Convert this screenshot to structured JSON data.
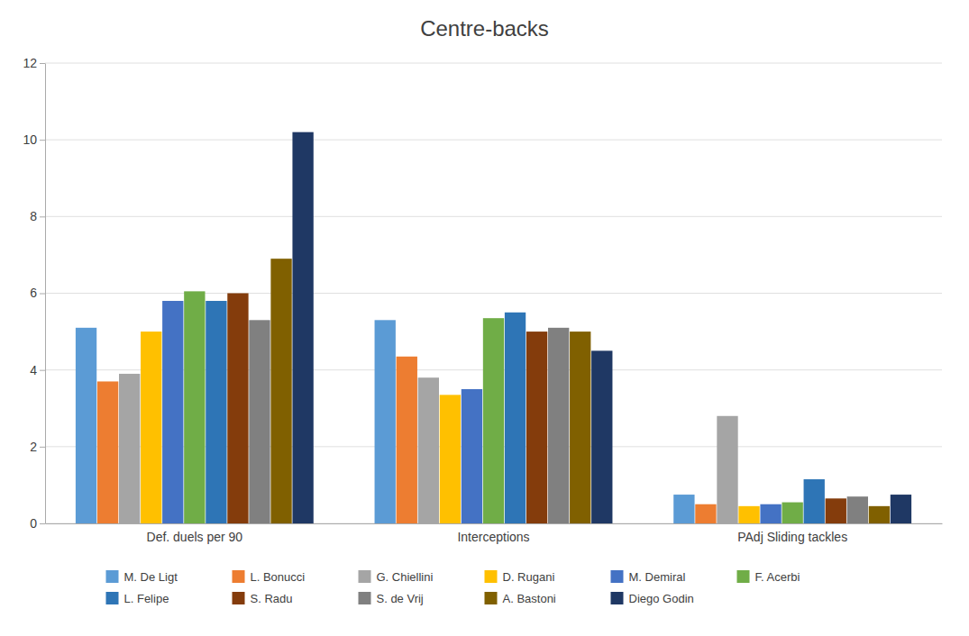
{
  "chart_data": {
    "type": "bar",
    "title": "Centre-backs",
    "categories": [
      "Def. duels per 90",
      "Interceptions",
      "PAdj Sliding tackles"
    ],
    "series": [
      {
        "name": "M. De Ligt",
        "color": "#5B9BD5",
        "values": [
          5.1,
          5.3,
          0.75
        ]
      },
      {
        "name": "L. Bonucci",
        "color": "#ED7D31",
        "values": [
          3.7,
          4.35,
          0.5
        ]
      },
      {
        "name": "G. Chiellini",
        "color": "#A5A5A5",
        "values": [
          3.9,
          3.8,
          2.8
        ]
      },
      {
        "name": "D. Rugani",
        "color": "#FFC000",
        "values": [
          5.0,
          3.35,
          0.45
        ]
      },
      {
        "name": "M. Demiral",
        "color": "#4472C4",
        "values": [
          5.8,
          3.5,
          0.5
        ]
      },
      {
        "name": "F. Acerbi",
        "color": "#70AD47",
        "values": [
          6.05,
          5.35,
          0.55
        ]
      },
      {
        "name": "L. Felipe",
        "color": "#2E75B6",
        "values": [
          5.8,
          5.5,
          1.15
        ]
      },
      {
        "name": "S. Radu",
        "color": "#843C0C",
        "values": [
          6.0,
          5.0,
          0.65
        ]
      },
      {
        "name": "S. de Vrij",
        "color": "#808080",
        "values": [
          5.3,
          5.1,
          0.7
        ]
      },
      {
        "name": "A. Bastoni",
        "color": "#806000",
        "values": [
          6.9,
          5.0,
          0.45
        ]
      },
      {
        "name": "Diego Godin",
        "color": "#1F3864",
        "values": [
          10.2,
          4.5,
          0.75
        ]
      }
    ],
    "ylim": [
      0,
      12
    ],
    "yticks": [
      0,
      2,
      4,
      6,
      8,
      10,
      12
    ],
    "grid": true,
    "legend": "bottom"
  }
}
